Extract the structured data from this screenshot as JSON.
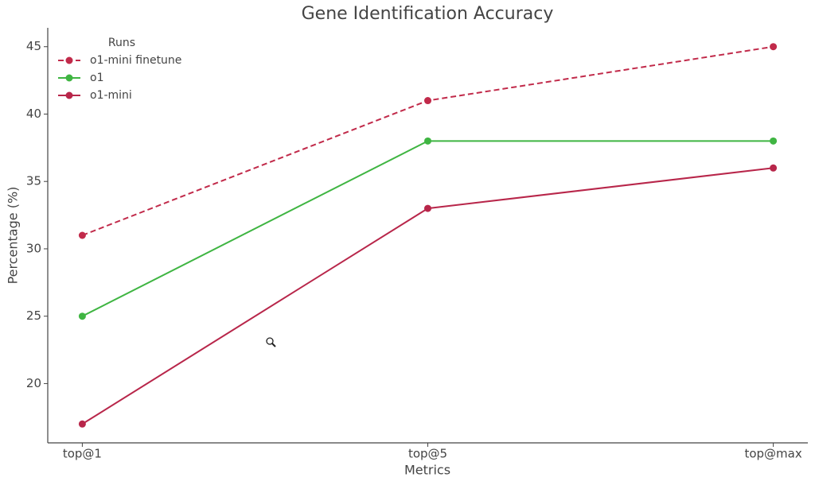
{
  "chart_data": {
    "type": "line",
    "title": "Gene Identification Accuracy",
    "x_label": "Metrics",
    "y_label": "Percentage (%)",
    "categories": [
      "top@1",
      "top@5",
      "top@max"
    ],
    "series": [
      {
        "name": "o1-mini finetune",
        "color": "#c12a4a",
        "line_style": "dashed",
        "values": [
          31,
          41,
          45
        ]
      },
      {
        "name": "o1",
        "color": "#3fb542",
        "line_style": "solid",
        "values": [
          25,
          38,
          38
        ]
      },
      {
        "name": "o1-mini",
        "color": "#b8264a",
        "line_style": "solid",
        "values": [
          17,
          33,
          36
        ]
      }
    ],
    "ylim": [
      15.6,
      46.4
    ],
    "yticks": [
      20,
      25,
      30,
      35,
      40,
      45
    ],
    "grid": false,
    "legend": {
      "title": "Runs",
      "position": "upper left"
    }
  }
}
